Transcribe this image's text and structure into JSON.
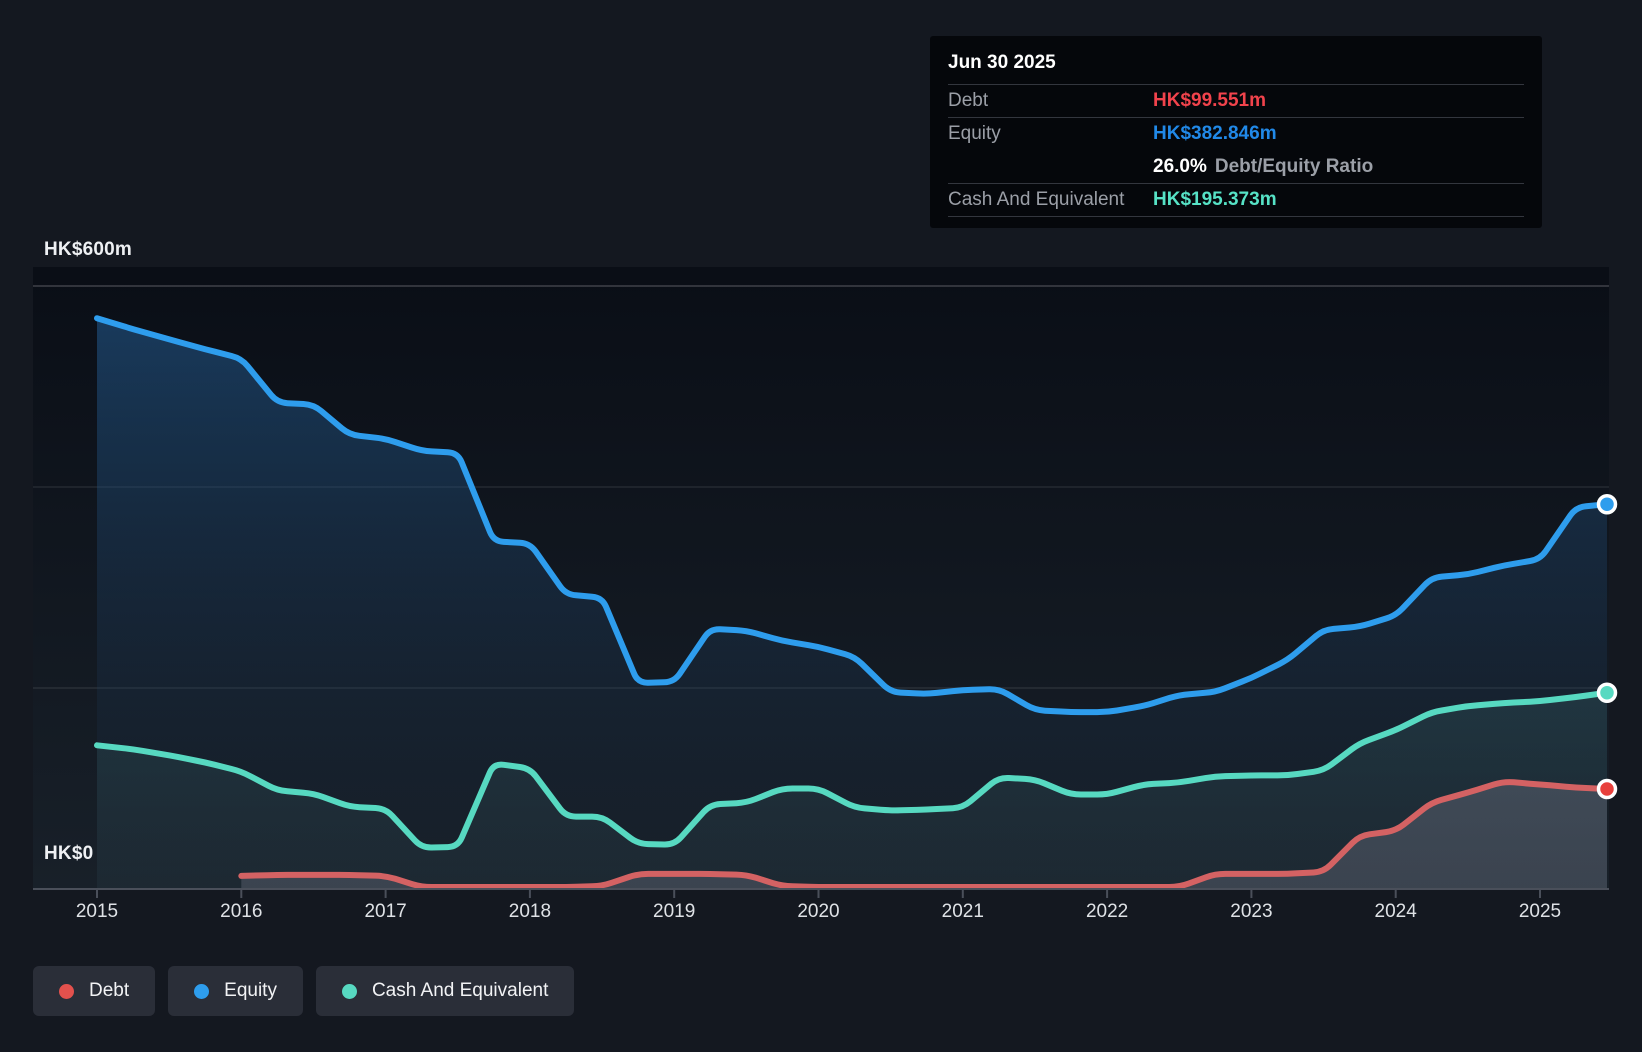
{
  "y_axis": {
    "top_label": "HK$600m",
    "bottom_label": "HK$0"
  },
  "x_axis": {
    "years": [
      "2015",
      "2016",
      "2017",
      "2018",
      "2019",
      "2020",
      "2021",
      "2022",
      "2023",
      "2024",
      "2025"
    ]
  },
  "tooltip": {
    "date": "Jun 30 2025",
    "debt_label": "Debt",
    "debt_value": "HK$99.551m",
    "equity_label": "Equity",
    "equity_value": "HK$382.846m",
    "ratio_value": "26.0%",
    "ratio_label": "Debt/Equity Ratio",
    "cash_label": "Cash And Equivalent",
    "cash_value": "HK$195.373m"
  },
  "legend": {
    "items": [
      {
        "label": "Debt",
        "color": "#e3514d"
      },
      {
        "label": "Equity",
        "color": "#2e9ded"
      },
      {
        "label": "Cash And Equivalent",
        "color": "#57d9c1"
      }
    ]
  },
  "colors": {
    "debt_line": "#d46263",
    "equity_line": "#2e9ded",
    "cash_line": "#57d9c1",
    "debt_dot": "#e8403c",
    "equity_dot": "#2e9ded",
    "cash_dot": "#57d9c1",
    "grid_major": "rgba(255,255,255,0.16)",
    "grid_minor": "rgba(255,255,255,0.07)",
    "axis_line": "#4a4f5a"
  },
  "chart_data": {
    "type": "area",
    "unit": "HK$m",
    "ylim": [
      0,
      600
    ],
    "gridlines": [
      200,
      400,
      600
    ],
    "legend_position": "bottom-left",
    "x": [
      2015.0,
      2015.25,
      2015.5,
      2015.75,
      2016.0,
      2016.25,
      2016.5,
      2016.75,
      2017.0,
      2017.25,
      2017.5,
      2017.75,
      2018.0,
      2018.25,
      2018.5,
      2018.75,
      2019.0,
      2019.25,
      2019.5,
      2019.75,
      2020.0,
      2020.25,
      2020.5,
      2020.75,
      2021.0,
      2021.25,
      2021.5,
      2021.75,
      2022.0,
      2022.25,
      2022.5,
      2022.75,
      2023.0,
      2023.25,
      2023.5,
      2023.75,
      2024.0,
      2024.25,
      2024.5,
      2024.75,
      2025.0,
      2025.25,
      2025.5
    ],
    "series": [
      {
        "name": "Equity",
        "values": [
          568,
          557,
          547,
          537,
          528,
          484,
          482,
          452,
          448,
          436,
          434,
          346,
          344,
          293,
          290,
          205,
          206,
          259,
          257,
          247,
          241,
          231,
          196,
          194,
          198,
          199,
          178,
          176,
          176,
          182,
          193,
          196,
          210,
          228,
          258,
          261,
          272,
          310,
          313,
          322,
          328,
          380,
          382.846
        ]
      },
      {
        "name": "Cash And Equivalent",
        "values": [
          143,
          139,
          133,
          126,
          117,
          98,
          95,
          82,
          80,
          41,
          42,
          125,
          120,
          72,
          72,
          45,
          44,
          84,
          86,
          100,
          100,
          81,
          78,
          79,
          81,
          111,
          109,
          94,
          94,
          104,
          106,
          112,
          113,
          113,
          118,
          145,
          158,
          176,
          182,
          185,
          187,
          191,
          195.373
        ]
      },
      {
        "name": "Debt",
        "values": [
          null,
          null,
          null,
          null,
          13,
          14,
          14,
          14,
          13,
          2,
          2,
          2,
          2,
          2,
          3,
          15,
          15,
          15,
          14,
          3,
          2,
          2,
          2,
          2,
          2,
          2,
          2,
          2,
          2,
          2,
          2,
          15,
          15,
          15,
          17,
          53,
          58,
          86,
          96,
          107,
          104,
          101,
          99.551
        ]
      }
    ],
    "last_point": {
      "date": "Jun 30 2025",
      "Debt": 99.551,
      "Equity": 382.846,
      "Cash And Equivalent": 195.373,
      "debt_equity_ratio": "26.0%"
    }
  }
}
